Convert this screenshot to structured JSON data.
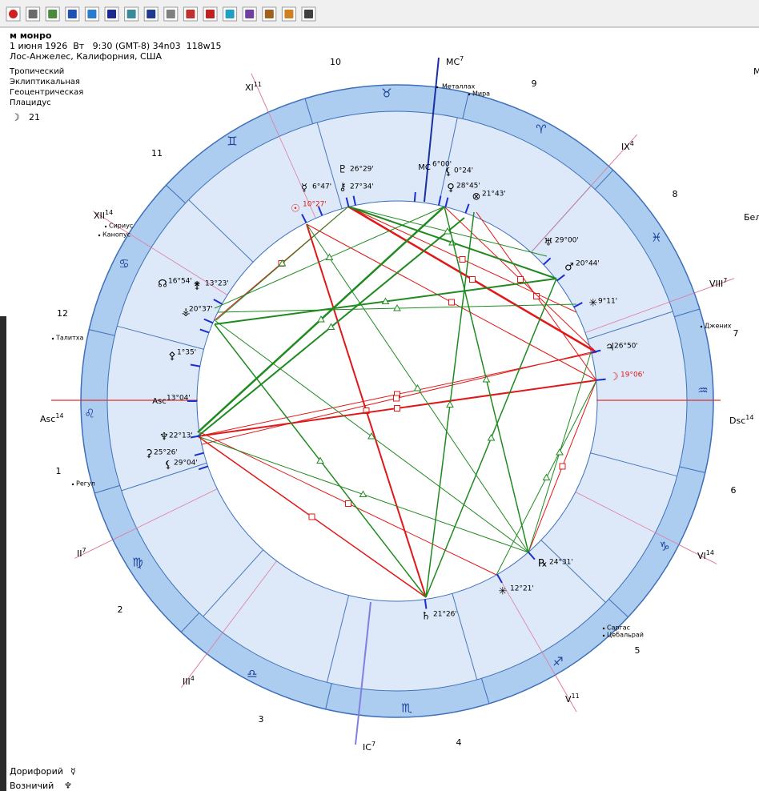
{
  "header": {
    "name": "м монро",
    "date_line": "1 июня 1926  Вт   9:30 (GMT-8) 34n03  118w15",
    "place": "Лос-Анжелес, Калифорния, США",
    "settings": [
      "Тропический",
      "Эклиптикальная",
      "Геоцентрическая",
      "Плацидус"
    ],
    "moon_glyph": "☽",
    "moon_value": "21"
  },
  "chart": {
    "signs": [
      "♉",
      "♈",
      "♓",
      "♒",
      "♑",
      "♐",
      "♏",
      "♎",
      "♍",
      "♌",
      "♋",
      "♊"
    ],
    "house_numbers": [
      "10",
      "9",
      "11",
      "8",
      "12",
      "7",
      "1",
      "6",
      "2",
      "5",
      "3",
      "4"
    ],
    "cusps": [
      {
        "label": "MC",
        "sup": "7"
      },
      {
        "label": "XI",
        "sup": "11"
      },
      {
        "label": "IX",
        "sup": "4"
      },
      {
        "label": "XII",
        "sup": "14"
      },
      {
        "label": "VIII",
        "sup": "7"
      },
      {
        "label": "Asc",
        "sup": "14"
      },
      {
        "label": "Dsc",
        "sup": "14"
      },
      {
        "label": "II",
        "sup": "7"
      },
      {
        "label": "VI",
        "sup": "14"
      },
      {
        "label": "III",
        "sup": "4"
      },
      {
        "label": "V",
        "sup": "11"
      },
      {
        "label": "IC",
        "sup": "7"
      }
    ],
    "planets": [
      {
        "glyph": "☉",
        "degree": "10°27'"
      },
      {
        "glyph": "☿",
        "degree": "6°47'"
      },
      {
        "glyph": "♇",
        "degree": "26°29'"
      },
      {
        "glyph": "⚷",
        "degree": "27°34'"
      },
      {
        "glyph": "MC",
        "degree": "6°00'"
      },
      {
        "glyph": "⚸",
        "degree": "0°24'"
      },
      {
        "glyph": "♀",
        "degree": "28°45'"
      },
      {
        "glyph": "⊗",
        "degree": "21°43'"
      },
      {
        "glyph": "♅",
        "degree": "29°00'"
      },
      {
        "glyph": "♂",
        "degree": "20°44'"
      },
      {
        "glyph": "✳",
        "degree": "9°11'"
      },
      {
        "glyph": "♃",
        "degree": "26°50'"
      },
      {
        "glyph": "☽",
        "degree": "19°06'"
      },
      {
        "glyph": "℞",
        "degree": "24°31'"
      },
      {
        "glyph": "✳",
        "degree": "12°21'"
      },
      {
        "glyph": "♄",
        "degree": "21°26'"
      },
      {
        "glyph": "☊",
        "degree": "16°54'"
      },
      {
        "glyph": "⚵",
        "degree": "13°23'"
      },
      {
        "glyph": "⚶",
        "degree": "20°37'"
      },
      {
        "glyph": "⚴",
        "degree": "1°35'"
      },
      {
        "glyph": "Asc",
        "degree": "13°04'"
      },
      {
        "glyph": "♆",
        "degree": "22°13'"
      },
      {
        "glyph": "⚳",
        "degree": "25°26'"
      },
      {
        "glyph": "⚸",
        "degree": "29°04'"
      }
    ],
    "stars": [
      "Металлах",
      "Мира",
      "Сириус",
      "Канопус",
      "Джених",
      "Талитха",
      "Регул",
      "Саргас",
      "Цебальрай"
    ]
  },
  "legend": [
    {
      "name": "Дорифорий",
      "glyph": "☿"
    },
    {
      "name": "Возничий",
      "glyph": "♆"
    }
  ],
  "edge_text": [
    "М",
    "Бел"
  ]
}
